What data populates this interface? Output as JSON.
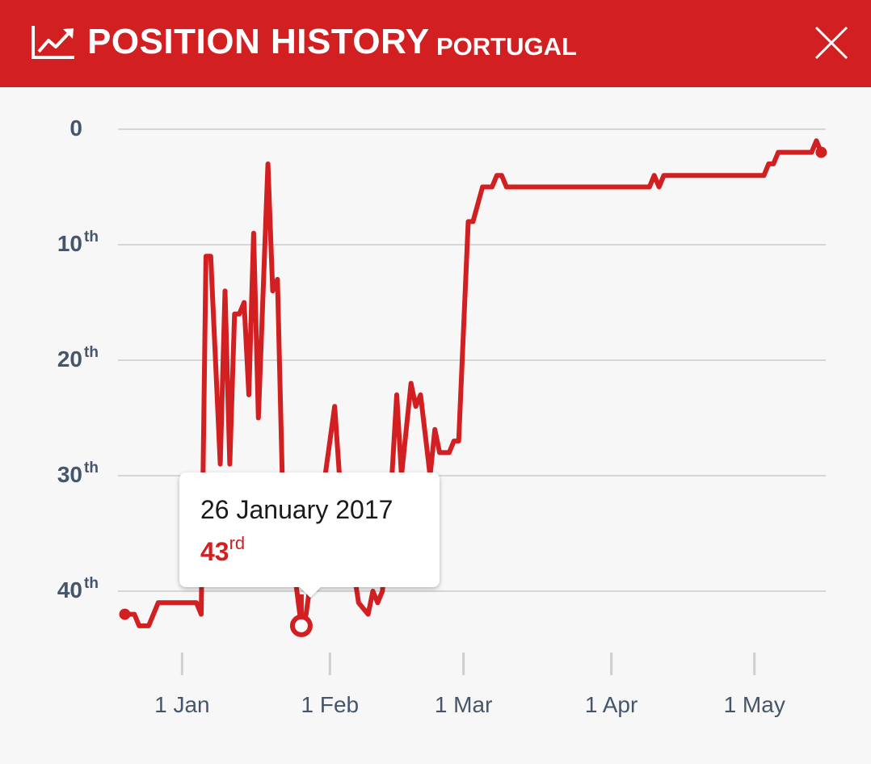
{
  "header": {
    "title": "POSITION HISTORY",
    "subtitle": "PORTUGAL",
    "icon": "trending-up-icon",
    "close_icon": "close-icon",
    "background_color": "#d21f21"
  },
  "tooltip": {
    "date": "26 January 2017",
    "rank_number": "43",
    "rank_suffix": "rd"
  },
  "chart_data": {
    "type": "line",
    "title": "POSITION HISTORY",
    "series_color": "#d21f21",
    "y_axis": {
      "inverted": true,
      "range": [
        0,
        45
      ],
      "ticks": [
        {
          "value": 0,
          "label": "0",
          "suffix": ""
        },
        {
          "value": 10,
          "label": "10",
          "suffix": "th"
        },
        {
          "value": 20,
          "label": "20",
          "suffix": "th"
        },
        {
          "value": 30,
          "label": "30",
          "suffix": "th"
        },
        {
          "value": 40,
          "label": "40",
          "suffix": "th"
        }
      ],
      "grid": true
    },
    "x_axis": {
      "range": [
        "2016-12-15",
        "2017-05-16"
      ],
      "ticks": [
        {
          "date": "2017-01-01",
          "label": "1 Jan"
        },
        {
          "date": "2017-02-01",
          "label": "1 Feb"
        },
        {
          "date": "2017-03-01",
          "label": "1 Mar"
        },
        {
          "date": "2017-04-01",
          "label": "1 Apr"
        },
        {
          "date": "2017-05-01",
          "label": "1 May"
        }
      ]
    },
    "highlight": {
      "date": "2017-01-26",
      "value": 43
    },
    "series": [
      {
        "points": [
          [
            "2016-12-20",
            42
          ],
          [
            "2016-12-22",
            42
          ],
          [
            "2016-12-23",
            43
          ],
          [
            "2016-12-25",
            43
          ],
          [
            "2016-12-27",
            41
          ],
          [
            "2017-01-04",
            41
          ],
          [
            "2017-01-05",
            42
          ],
          [
            "2017-01-06",
            11
          ],
          [
            "2017-01-07",
            11
          ],
          [
            "2017-01-09",
            29
          ],
          [
            "2017-01-10",
            14
          ],
          [
            "2017-01-11",
            29
          ],
          [
            "2017-01-12",
            16
          ],
          [
            "2017-01-13",
            16
          ],
          [
            "2017-01-14",
            15
          ],
          [
            "2017-01-15",
            23
          ],
          [
            "2017-01-16",
            9
          ],
          [
            "2017-01-17",
            25
          ],
          [
            "2017-01-19",
            3
          ],
          [
            "2017-01-20",
            14
          ],
          [
            "2017-01-21",
            13
          ],
          [
            "2017-01-22",
            30
          ],
          [
            "2017-01-26",
            43
          ],
          [
            "2017-01-27",
            42
          ],
          [
            "2017-02-02",
            24
          ],
          [
            "2017-02-03",
            30
          ],
          [
            "2017-02-07",
            41
          ],
          [
            "2017-02-09",
            42
          ],
          [
            "2017-02-10",
            40
          ],
          [
            "2017-02-11",
            41
          ],
          [
            "2017-02-12",
            40
          ],
          [
            "2017-02-14",
            30
          ],
          [
            "2017-02-15",
            23
          ],
          [
            "2017-02-16",
            30
          ],
          [
            "2017-02-18",
            22
          ],
          [
            "2017-02-19",
            24
          ],
          [
            "2017-02-20",
            23
          ],
          [
            "2017-02-22",
            30
          ],
          [
            "2017-02-23",
            26
          ],
          [
            "2017-02-24",
            28
          ],
          [
            "2017-02-26",
            28
          ],
          [
            "2017-02-27",
            27
          ],
          [
            "2017-02-28",
            27
          ],
          [
            "2017-03-02",
            8
          ],
          [
            "2017-03-03",
            8
          ],
          [
            "2017-03-05",
            5
          ],
          [
            "2017-03-07",
            5
          ],
          [
            "2017-03-08",
            4
          ],
          [
            "2017-03-09",
            4
          ],
          [
            "2017-03-10",
            5
          ],
          [
            "2017-04-09",
            5
          ],
          [
            "2017-04-10",
            4
          ],
          [
            "2017-04-11",
            5
          ],
          [
            "2017-04-12",
            4
          ],
          [
            "2017-05-03",
            4
          ],
          [
            "2017-05-04",
            3
          ],
          [
            "2017-05-05",
            3
          ],
          [
            "2017-05-06",
            2
          ],
          [
            "2017-05-13",
            2
          ],
          [
            "2017-05-14",
            1
          ],
          [
            "2017-05-15",
            2
          ]
        ]
      }
    ]
  }
}
